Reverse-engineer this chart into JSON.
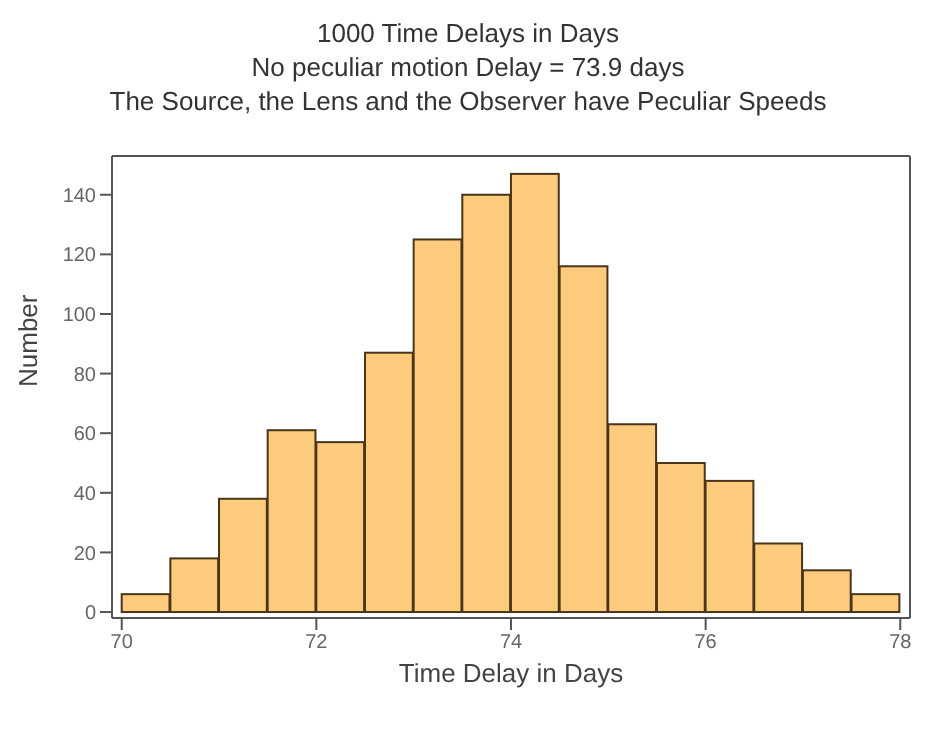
{
  "chart_data": {
    "type": "histogram",
    "title": "1000 Time Delays in Days",
    "subtitle": "No peculiar motion Delay =  73.9   days",
    "annotations": [
      "The Source, the Lens and the Observer have Peculiar Speeds"
    ],
    "xlabel": "Time Delay in Days",
    "ylabel": "Number",
    "bins": [
      70,
      70.5,
      71,
      71.5,
      72,
      72.5,
      73,
      73.5,
      74,
      74.5,
      75,
      75.5,
      76,
      76.5,
      77,
      77.5,
      78
    ],
    "values": [
      6,
      18,
      38,
      61,
      57,
      87,
      125,
      140,
      147,
      116,
      63,
      50,
      44,
      23,
      14,
      6
    ],
    "color": "#fdcb7e",
    "xlim": [
      69.9,
      78.1
    ],
    "xticks": [
      70,
      72,
      74,
      76,
      78
    ],
    "ylim": [
      -2,
      153
    ],
    "yticks": [
      0,
      20,
      40,
      60,
      80,
      100,
      120,
      140
    ],
    "grid": false,
    "legend": false
  }
}
